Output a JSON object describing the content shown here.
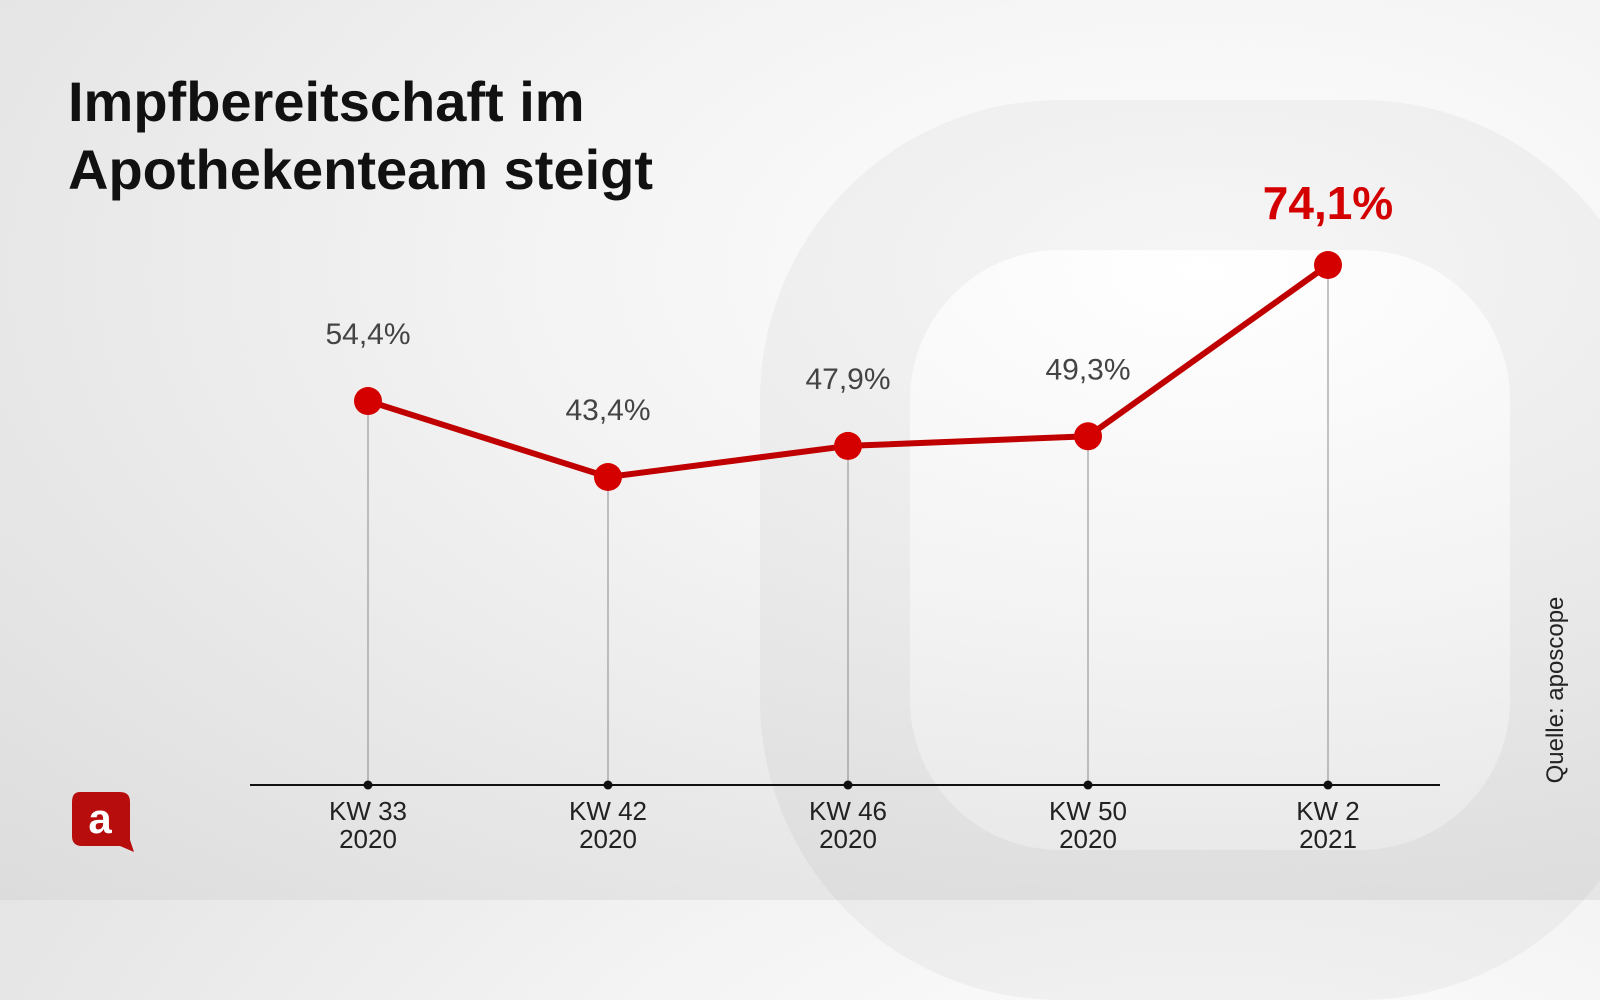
{
  "title_lines": [
    "Impfbereitschaft im",
    "Apothekenteam steigt"
  ],
  "source": "Quelle: aposcope",
  "logo_letter": "a",
  "colors": {
    "line": "#c00000",
    "marker": "#d40000",
    "highlight": "#d40000",
    "label": "#444444",
    "axis": "#111111"
  },
  "chart_data": {
    "type": "line",
    "title": "Impfbereitschaft im Apothekenteam steigt",
    "xlabel": "",
    "ylabel": "",
    "ylim": [
      0,
      80
    ],
    "grid": false,
    "legend": "none",
    "categories": [
      [
        "KW 33",
        "2020"
      ],
      [
        "KW 42",
        "2020"
      ],
      [
        "KW 46",
        "2020"
      ],
      [
        "KW 50",
        "2020"
      ],
      [
        "KW 2",
        "2021"
      ]
    ],
    "series": [
      {
        "name": "Impfbereitschaft",
        "values": [
          54.4,
          43.4,
          47.9,
          49.3,
          74.1
        ]
      }
    ],
    "data_labels": [
      "54,4%",
      "43,4%",
      "47,9%",
      "49,3%",
      "74,1%"
    ],
    "highlight_index": 4
  }
}
